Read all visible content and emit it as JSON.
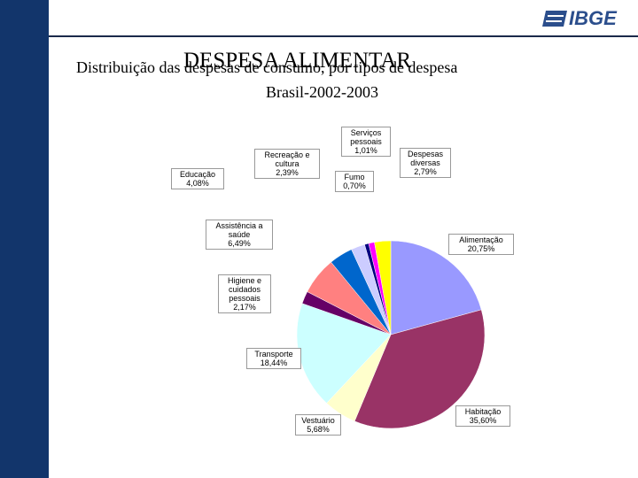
{
  "logo": "IBGE",
  "chart_data": {
    "type": "pie",
    "title": "DESPESA ALIMENTAR",
    "subtitle": "Distribuição das despesas de consumo, por tipos de despesa",
    "subtitle2": "Brasil-2002-2003",
    "categories": [
      "Alimentação",
      "Habitação",
      "Vestuário",
      "Transporte",
      "Higiene e cuidados pessoais",
      "Assistência a saúde",
      "Educação",
      "Recreação e cultura",
      "Fumo",
      "Serviços pessoais",
      "Despesas diversas"
    ],
    "values": [
      20.75,
      35.6,
      5.68,
      18.44,
      2.17,
      6.49,
      4.08,
      2.39,
      0.7,
      1.01,
      2.79
    ],
    "value_labels": [
      "20,75%",
      "35,60%",
      "5,68%",
      "18,44%",
      "2,17%",
      "6,49%",
      "4,08%",
      "2,39%",
      "0,70%",
      "1,01%",
      "2,79%"
    ],
    "colors": [
      "#9999ff",
      "#993366",
      "#ffffcc",
      "#ccffff",
      "#660066",
      "#ff8080",
      "#0066cc",
      "#ccccff",
      "#000080",
      "#ff00ff",
      "#ffff00"
    ]
  }
}
